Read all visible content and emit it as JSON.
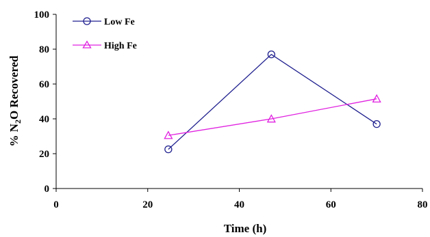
{
  "chart_data": {
    "type": "line",
    "xlabel": "Time (h)",
    "ylabel": {
      "prefix": "% N",
      "subscript": "2",
      "suffix": "O Recovered"
    },
    "xlim": [
      0,
      80
    ],
    "ylim": [
      0,
      100
    ],
    "xticks": [
      0,
      20,
      40,
      60,
      80
    ],
    "yticks": [
      0,
      20,
      40,
      60,
      80,
      100
    ],
    "grid": false,
    "legend_position": "top-left",
    "series": [
      {
        "name": "Low Fe",
        "color": "#1f1f8f",
        "marker": "circle",
        "x": [
          24.5,
          47,
          70
        ],
        "y": [
          22.5,
          77,
          37
        ]
      },
      {
        "name": "High Fe",
        "color": "#e020e0",
        "marker": "triangle",
        "x": [
          24.5,
          47,
          70
        ],
        "y": [
          30.5,
          40,
          51.5
        ]
      }
    ]
  }
}
